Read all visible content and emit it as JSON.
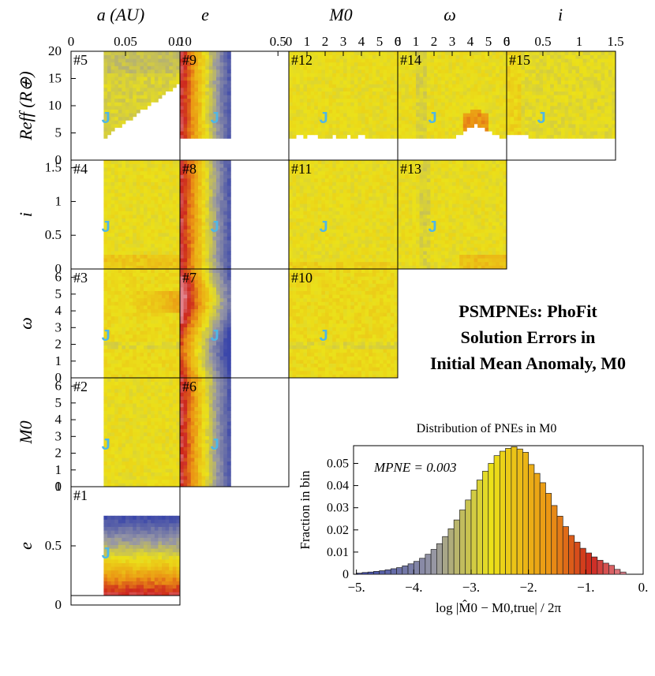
{
  "figure": {
    "column_headers": [
      "a (AU)",
      "e",
      "M0",
      "ω",
      "i"
    ],
    "row_labels": [
      "Reff (R⊕)",
      "i",
      "ω",
      "M0",
      "e"
    ],
    "title_lines": [
      "PSMPNEs: PhoFit",
      "Solution Errors in",
      "Initial Mean Anomaly, M0"
    ],
    "marker_symbol": "J",
    "top_axes": [
      {
        "ticks": [
          "0",
          "0.05",
          "0.10"
        ]
      },
      {
        "ticks": [
          "0",
          "0.5"
        ]
      },
      {
        "ticks": [
          "0",
          "1",
          "2",
          "3",
          "4",
          "5",
          "6"
        ]
      },
      {
        "ticks": [
          "0",
          "1",
          "2",
          "3",
          "4",
          "5",
          "6"
        ]
      },
      {
        "ticks": [
          "0",
          "0.5",
          "1",
          "1.5"
        ]
      }
    ],
    "left_axes": [
      {
        "ticks": [
          "0",
          "5",
          "10",
          "15",
          "20"
        ]
      },
      {
        "ticks": [
          "0",
          "0.5",
          "1",
          "1.5"
        ]
      },
      {
        "ticks": [
          "0",
          "1",
          "2",
          "3",
          "4",
          "5",
          "6"
        ]
      },
      {
        "ticks": [
          "0",
          "1",
          "2",
          "3",
          "4",
          "5",
          "6"
        ]
      },
      {
        "ticks": [
          "0",
          "0.5",
          "1"
        ]
      }
    ],
    "panels": [
      {
        "id": "#1",
        "row": 4,
        "col": 0,
        "pattern": "e_vs_a"
      },
      {
        "id": "#2",
        "row": 3,
        "col": 0,
        "pattern": "uniform_a"
      },
      {
        "id": "#3",
        "row": 2,
        "col": 0,
        "pattern": "omega_vs_a"
      },
      {
        "id": "#4",
        "row": 1,
        "col": 0,
        "pattern": "i_vs_a"
      },
      {
        "id": "#5",
        "row": 0,
        "col": 0,
        "pattern": "r_vs_a"
      },
      {
        "id": "#6",
        "row": 3,
        "col": 1,
        "pattern": "e_gradient"
      },
      {
        "id": "#7",
        "row": 2,
        "col": 1,
        "pattern": "e_gradient_wavy"
      },
      {
        "id": "#8",
        "row": 1,
        "col": 1,
        "pattern": "e_gradient"
      },
      {
        "id": "#9",
        "row": 0,
        "col": 1,
        "pattern": "e_gradient_r"
      },
      {
        "id": "#10",
        "row": 2,
        "col": 2,
        "pattern": "omega_band"
      },
      {
        "id": "#11",
        "row": 1,
        "col": 2,
        "pattern": "uniform"
      },
      {
        "id": "#12",
        "row": 0,
        "col": 2,
        "pattern": "r_floor"
      },
      {
        "id": "#13",
        "row": 1,
        "col": 3,
        "pattern": "i_vs_omega"
      },
      {
        "id": "#14",
        "row": 0,
        "col": 3,
        "pattern": "r_vs_omega"
      },
      {
        "id": "#15",
        "row": 0,
        "col": 4,
        "pattern": "r_vs_i"
      }
    ]
  },
  "chart_data": {
    "type": "bar",
    "title": "Distribution of PNEs in M0",
    "xlabel": "log |M̂0 − M0,true| / 2π",
    "ylabel": "Fraction in bin",
    "annotation": "MPNE = 0.003",
    "xlim": [
      -5.05,
      0.0
    ],
    "ylim": [
      0,
      0.058
    ],
    "x_ticks": [
      -5.0,
      -4.0,
      -3.0,
      -2.0,
      -1.0,
      0.0
    ],
    "x_tick_labels": [
      "−5.",
      "−4.",
      "−3.",
      "−2.",
      "−1.",
      "0."
    ],
    "y_ticks": [
      0,
      0.01,
      0.02,
      0.03,
      0.04,
      0.05
    ],
    "y_tick_labels": [
      "0",
      "0.01",
      "0.02",
      "0.03",
      "0.04",
      "0.05"
    ],
    "bin_width": 0.1,
    "bin_starts": [
      -5.0,
      -4.9,
      -4.8,
      -4.7,
      -4.6,
      -4.5,
      -4.4,
      -4.3,
      -4.2,
      -4.1,
      -4.0,
      -3.9,
      -3.8,
      -3.7,
      -3.6,
      -3.5,
      -3.4,
      -3.3,
      -3.2,
      -3.1,
      -3.0,
      -2.9,
      -2.8,
      -2.7,
      -2.6,
      -2.5,
      -2.4,
      -2.3,
      -2.2,
      -2.1,
      -2.0,
      -1.9,
      -1.8,
      -1.7,
      -1.6,
      -1.5,
      -1.4,
      -1.3,
      -1.2,
      -1.1,
      -1.0,
      -0.9,
      -0.8,
      -0.7,
      -0.6,
      -0.5,
      -0.4
    ],
    "values": [
      0.0005,
      0.0008,
      0.001,
      0.0013,
      0.0016,
      0.002,
      0.0025,
      0.003,
      0.0038,
      0.0047,
      0.0058,
      0.0072,
      0.009,
      0.0112,
      0.0138,
      0.017,
      0.0205,
      0.0245,
      0.029,
      0.0335,
      0.038,
      0.0425,
      0.0465,
      0.05,
      0.0535,
      0.0555,
      0.0568,
      0.0575,
      0.0565,
      0.055,
      0.0495,
      0.0455,
      0.0413,
      0.0365,
      0.031,
      0.0262,
      0.0215,
      0.0175,
      0.0145,
      0.0117,
      0.0096,
      0.0078,
      0.0063,
      0.005,
      0.004,
      0.0022,
      0.001
    ]
  }
}
